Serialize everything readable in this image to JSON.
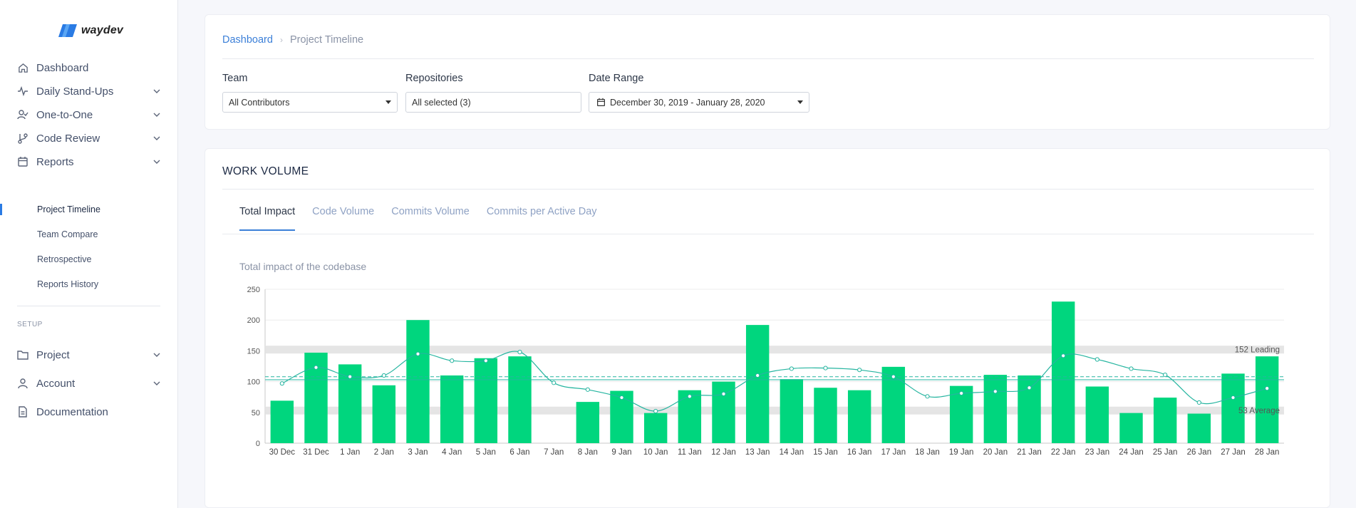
{
  "app": {
    "name": "waydev"
  },
  "sidebar": {
    "items": [
      {
        "label": "Dashboard",
        "icon": "home-icon",
        "chevron": false
      },
      {
        "label": "Daily Stand-Ups",
        "icon": "activity-icon",
        "chevron": true
      },
      {
        "label": "One-to-One",
        "icon": "user-check-icon",
        "chevron": true
      },
      {
        "label": "Code Review",
        "icon": "git-branch-icon",
        "chevron": true
      },
      {
        "label": "Reports",
        "icon": "calendar-icon",
        "chevron": true
      }
    ],
    "reports_sub": [
      "Project Timeline",
      "Team Compare",
      "Retrospective",
      "Reports History"
    ],
    "setup_label": "SETUP",
    "setup_items": [
      {
        "label": "Project",
        "icon": "folder-icon",
        "chevron": true
      },
      {
        "label": "Account",
        "icon": "user-icon",
        "chevron": true
      },
      {
        "label": "Documentation",
        "icon": "file-text-icon",
        "chevron": false
      }
    ]
  },
  "breadcrumb": {
    "root": "Dashboard",
    "current": "Project Timeline"
  },
  "filters": {
    "team": {
      "label": "Team",
      "value": "All Contributors"
    },
    "repositories": {
      "label": "Repositories",
      "value": "All selected (3)"
    },
    "date_range": {
      "label": "Date Range",
      "value": "December 30, 2019 - January 28, 2020"
    }
  },
  "work_volume": {
    "title": "WORK VOLUME",
    "tabs": [
      "Total Impact",
      "Code Volume",
      "Commits Volume",
      "Commits per Active Day"
    ],
    "active_tab": 0,
    "subtitle": "Total impact of the codebase"
  },
  "colors": {
    "bar": "#00d67e",
    "line": "#26b5a0",
    "band": "#e2e2e2",
    "accent": "#3b7fd8"
  },
  "chart_data": {
    "type": "bar",
    "categories": [
      "30 Dec",
      "31 Dec",
      "1 Jan",
      "2 Jan",
      "3 Jan",
      "4 Jan",
      "5 Jan",
      "6 Jan",
      "7 Jan",
      "8 Jan",
      "9 Jan",
      "10 Jan",
      "11 Jan",
      "12 Jan",
      "13 Jan",
      "14 Jan",
      "15 Jan",
      "16 Jan",
      "17 Jan",
      "18 Jan",
      "19 Jan",
      "20 Jan",
      "21 Jan",
      "22 Jan",
      "23 Jan",
      "24 Jan",
      "25 Jan",
      "26 Jan",
      "27 Jan",
      "28 Jan"
    ],
    "values": [
      69,
      147,
      128,
      94,
      200,
      110,
      138,
      141,
      0,
      67,
      85,
      49,
      86,
      100,
      192,
      104,
      90,
      86,
      124,
      0,
      93,
      111,
      110,
      230,
      92,
      49,
      74,
      48,
      113,
      141
    ],
    "trend": [
      97,
      123,
      108,
      110,
      145,
      134,
      134,
      148,
      98,
      87,
      74,
      52,
      76,
      80,
      110,
      121,
      122,
      119,
      108,
      76,
      81,
      84,
      90,
      142,
      136,
      121,
      111,
      66,
      74,
      89
    ],
    "ylim": [
      0,
      250
    ],
    "yticks": [
      0,
      50,
      100,
      150,
      200,
      250
    ],
    "bands": [
      {
        "value": 152,
        "label": "152 Leading"
      },
      {
        "value": 53,
        "label": "53 Average"
      }
    ],
    "reference_lines": [
      103,
      108
    ],
    "grid": true
  }
}
